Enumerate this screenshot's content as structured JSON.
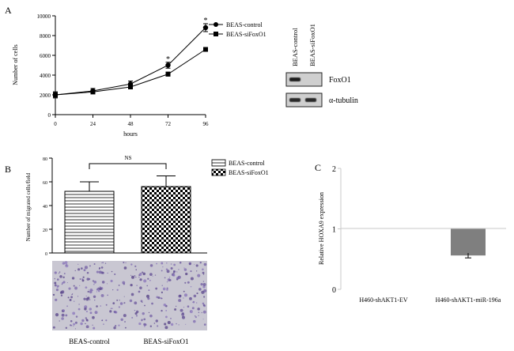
{
  "panels": {
    "a": {
      "letter": "A"
    },
    "b": {
      "letter": "B"
    },
    "c": {
      "letter": "C"
    }
  },
  "chart_data": [
    {
      "panel": "A",
      "type": "line",
      "title": "",
      "xlabel": "hours",
      "ylabel": "Number of cells",
      "x": [
        0,
        24,
        48,
        72,
        96
      ],
      "xticks": [
        "0",
        "24",
        "48",
        "72",
        "96"
      ],
      "yticks": [
        "0",
        "2000",
        "4000",
        "6000",
        "8000",
        "10000"
      ],
      "ylim": [
        0,
        10000
      ],
      "xlim": [
        0,
        96
      ],
      "legend_position": "top-right",
      "series": [
        {
          "name": "BEAS-control",
          "marker": "circle",
          "values": [
            2000,
            2400,
            3100,
            5000,
            8800
          ],
          "errors": [
            300,
            250,
            300,
            300,
            400
          ]
        },
        {
          "name": "BEAS-siFoxO1",
          "marker": "square",
          "values": [
            2000,
            2300,
            2800,
            4100,
            6600
          ],
          "errors": [
            300,
            200,
            200,
            200,
            200
          ]
        }
      ],
      "significance": [
        {
          "x": 72,
          "label": "*"
        },
        {
          "x": 96,
          "label": "*"
        }
      ],
      "western_blot": {
        "lanes": [
          "BEAS-control",
          "BEAS-siFoxO1"
        ],
        "bands": [
          {
            "label": "FoxO1",
            "present": [
              true,
              false
            ]
          },
          {
            "label": "α-tubulin",
            "present": [
              true,
              true
            ]
          }
        ]
      }
    },
    {
      "panel": "B",
      "type": "bar",
      "title": "",
      "xlabel": "",
      "ylabel": "Number of migrated cells/field",
      "categories": [
        "BEAS-control",
        "BEAS-siFoxO1"
      ],
      "values": [
        52,
        56
      ],
      "errors": [
        8,
        9
      ],
      "yticks": [
        "0",
        "20",
        "40",
        "60",
        "80"
      ],
      "ylim": [
        0,
        80
      ],
      "legend": [
        "BEAS-control",
        "BEAS-siFoxO1"
      ],
      "legend_position": "right",
      "fills": [
        "horizontal-stripes",
        "checkerboard"
      ],
      "significance": {
        "label": "NS"
      }
    },
    {
      "panel": "C",
      "type": "bar",
      "title": "",
      "xlabel": "",
      "ylabel": "Relative HOXA9 expression",
      "categories": [
        "H460-shAKT1-EV",
        "H460-shAKT1-miR-196a"
      ],
      "values": [
        1.0,
        0.56
      ],
      "errors": [
        0,
        0.04
      ],
      "yticks": [
        "0",
        "1",
        "2"
      ],
      "ylim": [
        0,
        2
      ],
      "baseline": 1,
      "colors": {
        "bar": "#7f7f7f"
      }
    }
  ]
}
